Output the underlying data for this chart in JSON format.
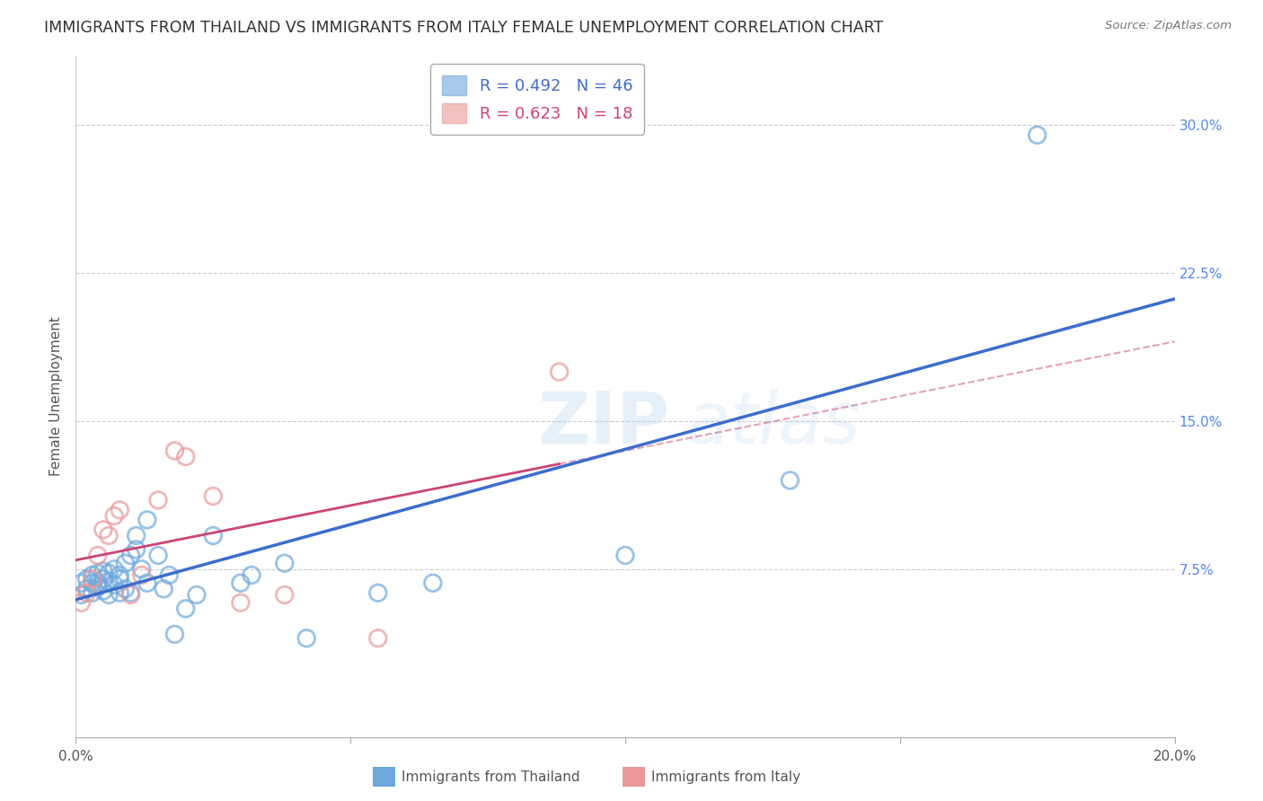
{
  "title": "IMMIGRANTS FROM THAILAND VS IMMIGRANTS FROM ITALY FEMALE UNEMPLOYMENT CORRELATION CHART",
  "source": "Source: ZipAtlas.com",
  "ylabel": "Female Unemployment",
  "right_yticks": [
    "30.0%",
    "22.5%",
    "15.0%",
    "7.5%"
  ],
  "right_ytick_vals": [
    0.3,
    0.225,
    0.15,
    0.075
  ],
  "xlim": [
    0.0,
    0.2
  ],
  "ylim": [
    -0.01,
    0.335
  ],
  "legend_blue_r": "R = 0.492",
  "legend_blue_n": "N = 46",
  "legend_pink_r": "R = 0.623",
  "legend_pink_n": "N = 18",
  "label_blue": "Immigrants from Thailand",
  "label_pink": "Immigrants from Italy",
  "blue_color": "#6fa8dc",
  "pink_color": "#ea9999",
  "blue_line_color": "#3d6dcc",
  "pink_line_color": "#cc4477",
  "watermark_zip": "ZIP",
  "watermark_atlas": "atlas",
  "blue_x": [
    0.001,
    0.001,
    0.002,
    0.002,
    0.003,
    0.003,
    0.003,
    0.004,
    0.004,
    0.004,
    0.005,
    0.005,
    0.005,
    0.006,
    0.006,
    0.006,
    0.007,
    0.007,
    0.008,
    0.008,
    0.008,
    0.009,
    0.009,
    0.01,
    0.01,
    0.011,
    0.011,
    0.012,
    0.013,
    0.013,
    0.015,
    0.016,
    0.017,
    0.018,
    0.02,
    0.022,
    0.025,
    0.03,
    0.032,
    0.038,
    0.042,
    0.055,
    0.065,
    0.1,
    0.13,
    0.175
  ],
  "blue_y": [
    0.062,
    0.068,
    0.065,
    0.07,
    0.063,
    0.072,
    0.068,
    0.066,
    0.073,
    0.068,
    0.064,
    0.07,
    0.074,
    0.062,
    0.069,
    0.073,
    0.067,
    0.075,
    0.063,
    0.07,
    0.072,
    0.065,
    0.078,
    0.063,
    0.082,
    0.085,
    0.092,
    0.075,
    0.1,
    0.068,
    0.082,
    0.065,
    0.072,
    0.042,
    0.055,
    0.062,
    0.092,
    0.068,
    0.072,
    0.078,
    0.04,
    0.063,
    0.068,
    0.082,
    0.12,
    0.295
  ],
  "pink_x": [
    0.001,
    0.002,
    0.003,
    0.004,
    0.005,
    0.006,
    0.007,
    0.008,
    0.01,
    0.012,
    0.015,
    0.018,
    0.02,
    0.025,
    0.03,
    0.038,
    0.055,
    0.088
  ],
  "pink_y": [
    0.058,
    0.063,
    0.07,
    0.082,
    0.095,
    0.092,
    0.102,
    0.105,
    0.062,
    0.072,
    0.11,
    0.135,
    0.132,
    0.112,
    0.058,
    0.062,
    0.04,
    0.175
  ]
}
